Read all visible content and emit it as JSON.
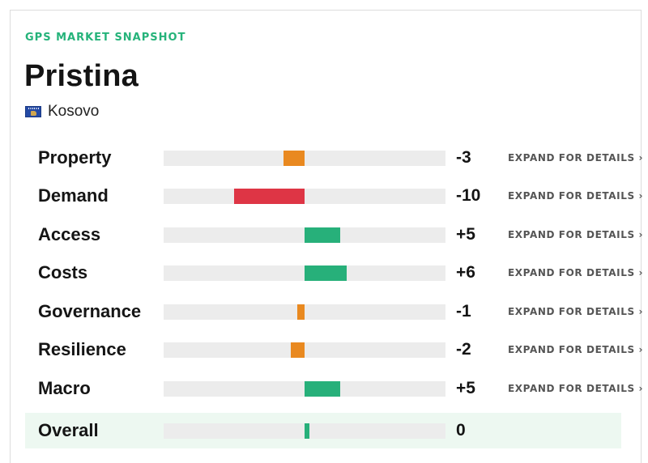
{
  "header": {
    "eyebrow": "GPS MARKET SNAPSHOT",
    "city": "Pristina",
    "country": "Kosovo",
    "flag_icon": "kosovo-flag-icon"
  },
  "colors": {
    "accent": "#25b37a",
    "negative": "#e98920",
    "strong_negative": "#de3545",
    "positive": "#27b07a",
    "track": "#ececec",
    "overall_bg": "#edf8f1"
  },
  "scale": {
    "min": -20,
    "max": 20
  },
  "metrics": [
    {
      "label": "Property",
      "value": -3,
      "value_text": "-3",
      "expand": "EXPAND FOR DETAILS ›"
    },
    {
      "label": "Demand",
      "value": -10,
      "value_text": "-10",
      "expand": "EXPAND FOR DETAILS ›"
    },
    {
      "label": "Access",
      "value": 5,
      "value_text": "+5",
      "expand": "EXPAND FOR DETAILS ›"
    },
    {
      "label": "Costs",
      "value": 6,
      "value_text": "+6",
      "expand": "EXPAND FOR DETAILS ›"
    },
    {
      "label": "Governance",
      "value": -1,
      "value_text": "-1",
      "expand": "EXPAND FOR DETAILS ›"
    },
    {
      "label": "Resilience",
      "value": -2,
      "value_text": "-2",
      "expand": "EXPAND FOR DETAILS ›"
    },
    {
      "label": "Macro",
      "value": 5,
      "value_text": "+5",
      "expand": "EXPAND FOR DETAILS ›"
    }
  ],
  "overall": {
    "label": "Overall",
    "value": 0,
    "value_text": "0"
  }
}
